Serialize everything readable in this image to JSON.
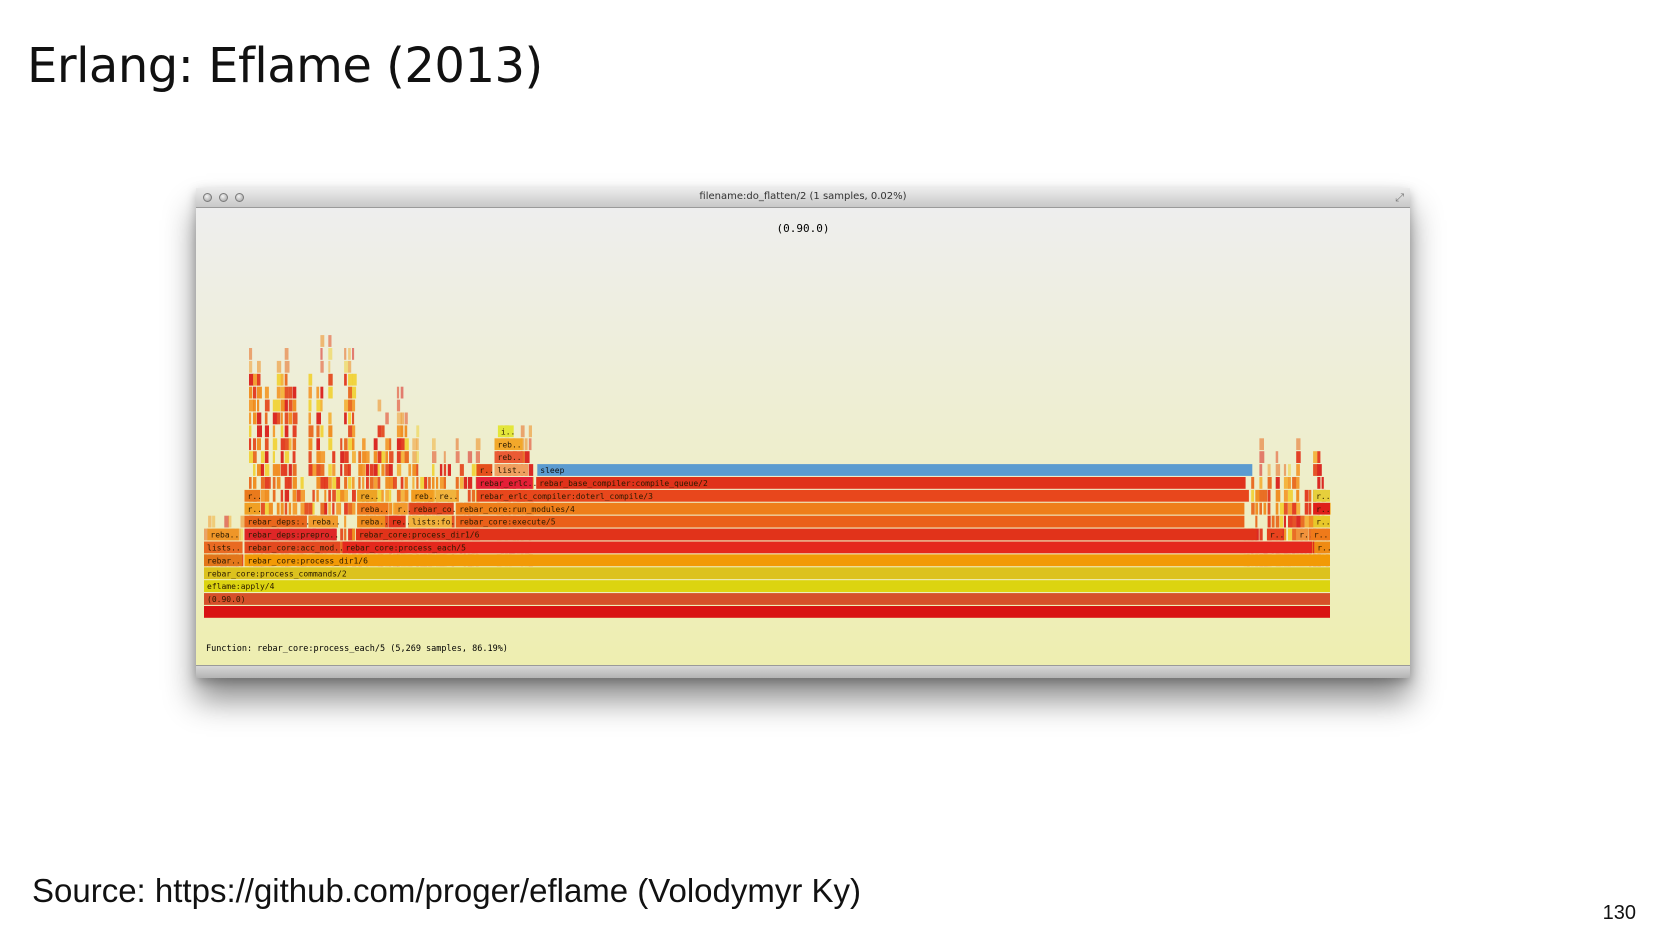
{
  "slide": {
    "title": "Erlang: Eflame (2013)",
    "source": "Source: https://github.com/proger/eflame (Volodymyr Ky)",
    "page_number": "130"
  },
  "window": {
    "title": "filename:do_flatten/2 (1 samples, 0.02%)"
  },
  "flamegraph": {
    "header_label": "(0.90.0)",
    "status_text": "Function: rebar_core:process_each/5 (5,269 samples, 86.19%)",
    "frames": [
      {
        "name": "",
        "depth": 0,
        "start": 0.0,
        "width": 1.0,
        "color": "#d91313"
      },
      {
        "name": "(0.90.0)",
        "depth": 1,
        "start": 0.0,
        "width": 1.0,
        "color": "#d6502a"
      },
      {
        "name": "eflame:apply/4",
        "depth": 2,
        "start": 0.0,
        "width": 1.0,
        "color": "#dcd410"
      },
      {
        "name": "rebar_core:process_commands/2",
        "depth": 3,
        "start": 0.0,
        "width": 1.0,
        "color": "#dcc21e"
      },
      {
        "name": "rebar..",
        "depth": 4,
        "start": 0.0,
        "width": 0.034,
        "color": "#e2761a"
      },
      {
        "name": "rebar_core:process_dir1/6",
        "depth": 4,
        "start": 0.036,
        "width": 0.964,
        "color": "#f29a06"
      },
      {
        "name": "lists..",
        "depth": 5,
        "start": 0.0,
        "width": 0.034,
        "color": "#e96a22"
      },
      {
        "name": "rebar_core:acc_mod..",
        "depth": 5,
        "start": 0.036,
        "width": 0.085,
        "color": "#e44a20"
      },
      {
        "name": "rebar_core:process_each/5",
        "depth": 5,
        "start": 0.123,
        "width": 0.861,
        "color": "#e5281d"
      },
      {
        "name": "r..",
        "depth": 5,
        "start": 0.986,
        "width": 0.014,
        "color": "#ef8b14"
      },
      {
        "name": "reba..",
        "depth": 6,
        "start": 0.003,
        "width": 0.028,
        "color": "#ef9628"
      },
      {
        "name": "rebar_deps:prepro..",
        "depth": 6,
        "start": 0.036,
        "width": 0.082,
        "color": "#df2727"
      },
      {
        "name": "rebar_core:process_dir1/6",
        "depth": 6,
        "start": 0.135,
        "width": 0.8,
        "color": "#e1331a"
      },
      {
        "name": "r..",
        "depth": 6,
        "start": 0.944,
        "width": 0.014,
        "color": "#e8421e"
      },
      {
        "name": "r..",
        "depth": 6,
        "start": 0.97,
        "width": 0.011,
        "color": "#f0923b"
      },
      {
        "name": "r..",
        "depth": 6,
        "start": 0.983,
        "width": 0.017,
        "color": "#ef7a1a"
      },
      {
        "name": "rebar_deps:..",
        "depth": 7,
        "start": 0.036,
        "width": 0.055,
        "color": "#e8671c"
      },
      {
        "name": "reba..",
        "depth": 7,
        "start": 0.093,
        "width": 0.026,
        "color": "#f09b2d"
      },
      {
        "name": "reba..",
        "depth": 7,
        "start": 0.136,
        "width": 0.025,
        "color": "#ee8b1e"
      },
      {
        "name": "re..",
        "depth": 7,
        "start": 0.164,
        "width": 0.015,
        "color": "#e2341b"
      },
      {
        "name": "lists:fo..",
        "depth": 7,
        "start": 0.182,
        "width": 0.038,
        "color": "#f2b23c"
      },
      {
        "name": "rebar_core:execute/5",
        "depth": 7,
        "start": 0.224,
        "width": 0.7,
        "color": "#ea6019"
      },
      {
        "name": "r..",
        "depth": 7,
        "start": 0.985,
        "width": 0.015,
        "color": "#e8c82a"
      },
      {
        "name": "r..",
        "depth": 8,
        "start": 0.036,
        "width": 0.014,
        "color": "#f0a024"
      },
      {
        "name": "reba..",
        "depth": 8,
        "start": 0.136,
        "width": 0.028,
        "color": "#ef7a1f"
      },
      {
        "name": "r..",
        "depth": 8,
        "start": 0.169,
        "width": 0.012,
        "color": "#f29a2d"
      },
      {
        "name": "rebar_co..",
        "depth": 8,
        "start": 0.183,
        "width": 0.038,
        "color": "#e2481d"
      },
      {
        "name": "rebar_core:run_modules/4",
        "depth": 8,
        "start": 0.224,
        "width": 0.7,
        "color": "#ee7e1a"
      },
      {
        "name": "r..",
        "depth": 8,
        "start": 0.985,
        "width": 0.015,
        "color": "#df1f1a"
      },
      {
        "name": "r..",
        "depth": 9,
        "start": 0.036,
        "width": 0.014,
        "color": "#ea7a1c"
      },
      {
        "name": "re..",
        "depth": 9,
        "start": 0.136,
        "width": 0.018,
        "color": "#eda324"
      },
      {
        "name": "reb..",
        "depth": 9,
        "start": 0.184,
        "width": 0.02,
        "color": "#f29c1f"
      },
      {
        "name": "re..",
        "depth": 9,
        "start": 0.206,
        "width": 0.018,
        "color": "#f0b33c"
      },
      {
        "name": "rebar_erlc_compiler:doterl_compile/3",
        "depth": 9,
        "start": 0.242,
        "width": 0.686,
        "color": "#e8471c"
      },
      {
        "name": "r..",
        "depth": 9,
        "start": 0.985,
        "width": 0.015,
        "color": "#e6cf3c"
      },
      {
        "name": "rebar_erlc..",
        "depth": 10,
        "start": 0.242,
        "width": 0.05,
        "color": "#e51f37"
      },
      {
        "name": "rebar_base_compiler:compile_queue/2",
        "depth": 10,
        "start": 0.295,
        "width": 0.63,
        "color": "#e0321a"
      },
      {
        "name": "r..",
        "depth": 11,
        "start": 0.242,
        "width": 0.014,
        "color": "#e5501c"
      },
      {
        "name": "list..",
        "depth": 11,
        "start": 0.258,
        "width": 0.03,
        "color": "#f09f5f"
      },
      {
        "name": "sleep",
        "depth": 11,
        "start": 0.296,
        "width": 0.635,
        "color": "#5b9bd0"
      },
      {
        "name": "reb..",
        "depth": 12,
        "start": 0.258,
        "width": 0.025,
        "color": "#ea5b34"
      },
      {
        "name": "reb..",
        "depth": 13,
        "start": 0.258,
        "width": 0.025,
        "color": "#f2a82b"
      },
      {
        "name": "i..",
        "depth": 14,
        "start": 0.261,
        "width": 0.014,
        "color": "#e3e63a"
      }
    ]
  }
}
